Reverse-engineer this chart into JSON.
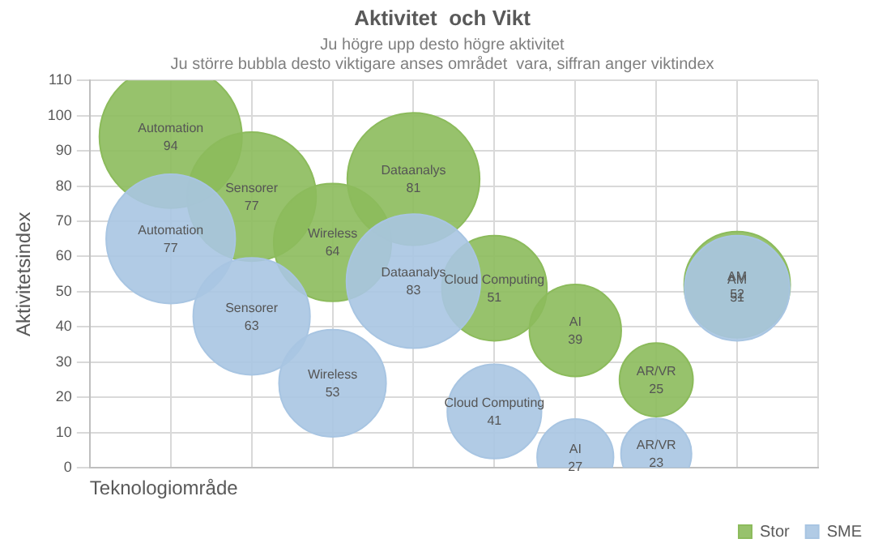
{
  "chart_data": {
    "type": "bubble",
    "title": "Aktivitet  och Vikt",
    "subtitle": "Ju högre upp desto högre aktivitet",
    "annotations": [
      "Ju större bubbla desto viktigare anses området  vara, siffran anger viktindex"
    ],
    "xlabel": "Teknologiområde",
    "ylabel": "Aktivitetsindex",
    "categories": [
      "Automation",
      "Sensorer",
      "Wireless",
      "Dataanalys",
      "Cloud Computing",
      "AI",
      "AR/VR",
      "AM"
    ],
    "series": [
      {
        "name": "Stor",
        "color": "#8cbb5c",
        "values": [
          94,
          77,
          64,
          82,
          51,
          39,
          25,
          52
        ],
        "sizes": [
          94,
          77,
          64,
          81,
          51,
          39,
          25,
          52
        ],
        "value_labels": [
          "94",
          "77",
          "64",
          "81",
          "51",
          "39",
          "25",
          "52"
        ]
      },
      {
        "name": "SME",
        "color": "#a8c5e2",
        "values": [
          65,
          43,
          24,
          53,
          16,
          3,
          4,
          51
        ],
        "sizes": [
          77,
          63,
          53,
          83,
          41,
          27,
          23,
          51
        ],
        "value_labels": [
          "77",
          "63",
          "53",
          "83",
          "41",
          "27",
          "23",
          "51"
        ]
      }
    ],
    "ylim": [
      0,
      110
    ],
    "yticks": [
      0,
      10,
      20,
      30,
      40,
      50,
      60,
      70,
      80,
      90,
      100,
      110
    ],
    "grid": true,
    "legend": "bottom",
    "tick_labels": "y"
  }
}
